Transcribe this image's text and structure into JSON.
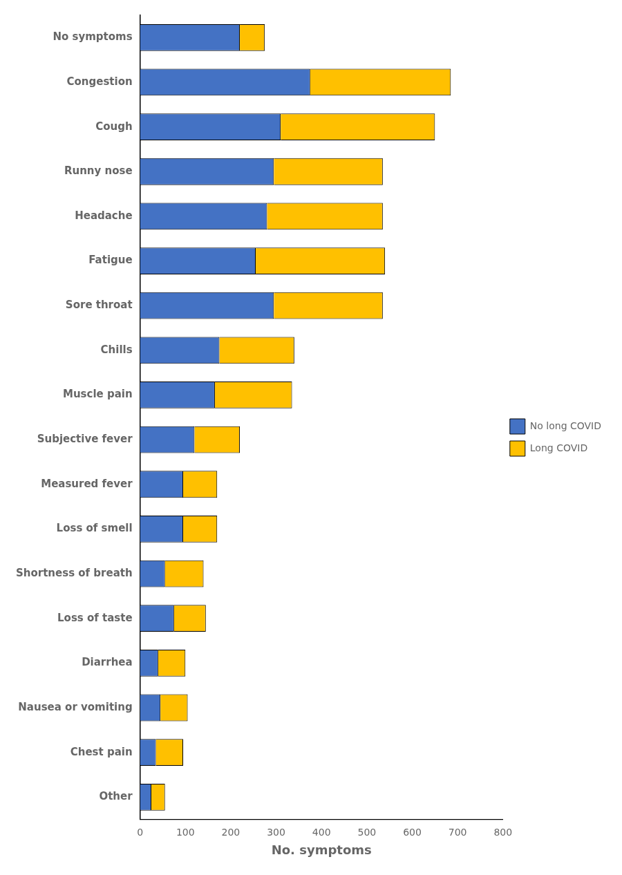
{
  "chart_data": {
    "type": "bar",
    "orientation": "horizontal",
    "stacked": true,
    "categories": [
      "No symptoms",
      "Congestion",
      "Cough",
      "Runny nose",
      "Headache",
      "Fatigue",
      "Sore throat",
      "Chills",
      "Muscle pain",
      "Subjective fever",
      "Measured fever",
      "Loss of smell",
      "Shortness of breath",
      "Loss of taste",
      "Diarrhea",
      "Nausea or vomiting",
      "Chest pain",
      "Other"
    ],
    "series": [
      {
        "name": "No long COVID",
        "color": "#4472C4",
        "values": [
          220,
          375,
          310,
          295,
          280,
          255,
          295,
          175,
          165,
          120,
          95,
          95,
          55,
          75,
          40,
          45,
          35,
          25
        ]
      },
      {
        "name": "Long COVID",
        "color": "#FFC000",
        "values": [
          55,
          310,
          340,
          240,
          255,
          285,
          240,
          165,
          170,
          100,
          75,
          75,
          85,
          70,
          60,
          60,
          60,
          30
        ]
      }
    ],
    "xlabel": "No. symptoms",
    "xlim": [
      0,
      800
    ],
    "xticks": [
      0,
      100,
      200,
      300,
      400,
      500,
      600,
      700,
      800
    ],
    "grid": false,
    "legend": "right"
  }
}
